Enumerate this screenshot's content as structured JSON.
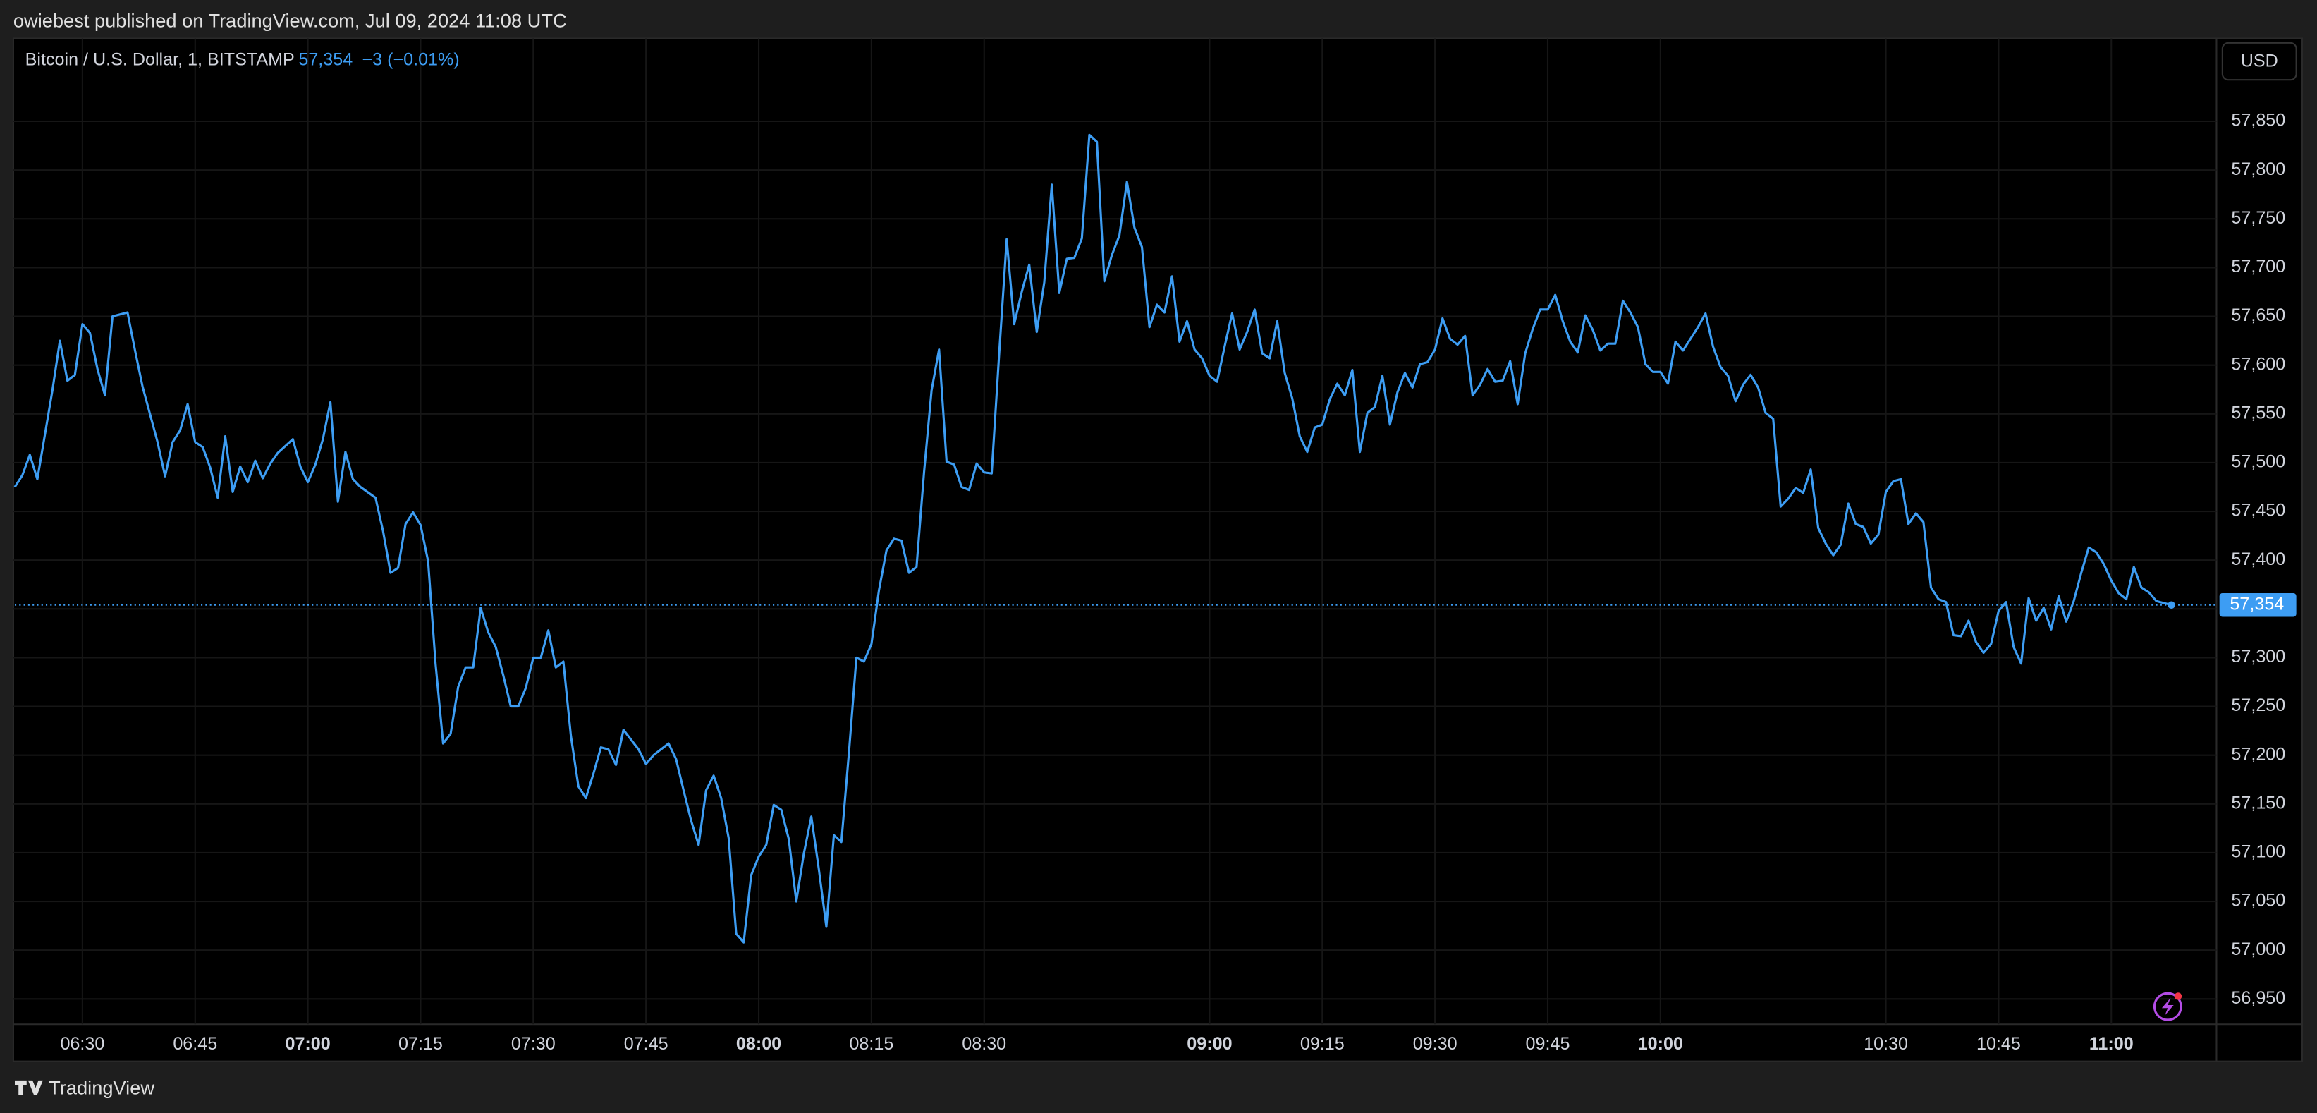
{
  "header": {
    "published": "owiebest published on TradingView.com, Jul 09, 2024 11:08 UTC"
  },
  "footer": {
    "brand": "TradingView"
  },
  "chart_data": {
    "type": "line",
    "last_price_label": "57,354",
    "change_label": "−3 (−0.01%)",
    "currency": "USD",
    "grid": true,
    "xlim": [
      "06:21",
      "11:14"
    ],
    "xticks": [
      "06:30",
      "06:45",
      "07:00",
      "07:15",
      "07:30",
      "07:45",
      "08:00",
      "08:15",
      "08:30",
      "09:00",
      "09:15",
      "09:30",
      "09:45",
      "10:00",
      "10:30",
      "10:45",
      "11:00"
    ],
    "ylim": [
      56924,
      57935
    ],
    "yticks": [
      {
        "value": 56950,
        "label": "56,950"
      },
      {
        "value": 57000,
        "label": "57,000"
      },
      {
        "value": 57050,
        "label": "57,050"
      },
      {
        "value": 57100,
        "label": "57,100"
      },
      {
        "value": 57150,
        "label": "57,150"
      },
      {
        "value": 57200,
        "label": "57,200"
      },
      {
        "value": 57250,
        "label": "57,250"
      },
      {
        "value": 57300,
        "label": "57,300"
      },
      {
        "value": 57350,
        "label": "57,350"
      },
      {
        "value": 57400,
        "label": "57,400"
      },
      {
        "value": 57450,
        "label": "57,450"
      },
      {
        "value": 57500,
        "label": "57,500"
      },
      {
        "value": 57550,
        "label": "57,550"
      },
      {
        "value": 57600,
        "label": "57,600"
      },
      {
        "value": 57650,
        "label": "57,650"
      },
      {
        "value": 57700,
        "label": "57,700"
      },
      {
        "value": 57750,
        "label": "57,750"
      },
      {
        "value": 57800,
        "label": "57,800"
      },
      {
        "value": 57850,
        "label": "57,850"
      }
    ],
    "x": [
      "06:21",
      "06:22",
      "06:23",
      "06:24",
      "06:26",
      "06:27",
      "06:28",
      "06:29",
      "06:30",
      "06:31",
      "06:32",
      "06:33",
      "06:34",
      "06:36",
      "06:37",
      "06:38",
      "06:40",
      "06:41",
      "06:42",
      "06:43",
      "06:44",
      "06:45",
      "06:46",
      "06:47",
      "06:48",
      "06:49",
      "06:50",
      "06:51",
      "06:52",
      "06:53",
      "06:54",
      "06:55",
      "06:56",
      "06:58",
      "06:59",
      "07:00",
      "07:01",
      "07:02",
      "07:03",
      "07:04",
      "07:05",
      "07:06",
      "07:07",
      "07:09",
      "07:10",
      "07:11",
      "07:12",
      "07:13",
      "07:14",
      "07:15",
      "07:16",
      "07:17",
      "07:18",
      "07:19",
      "07:20",
      "07:21",
      "07:22",
      "07:23",
      "07:24",
      "07:25",
      "07:26",
      "07:27",
      "07:28",
      "07:29",
      "07:30",
      "07:31",
      "07:32",
      "07:33",
      "07:34",
      "07:35",
      "07:36",
      "07:37",
      "07:38",
      "07:39",
      "07:40",
      "07:41",
      "07:42",
      "07:44",
      "07:45",
      "07:46",
      "07:47",
      "07:48",
      "07:49",
      "07:50",
      "07:51",
      "07:52",
      "07:53",
      "07:54",
      "07:55",
      "07:56",
      "07:57",
      "07:58",
      "07:59",
      "08:00",
      "08:01",
      "08:02",
      "08:03",
      "08:04",
      "08:05",
      "08:06",
      "08:07",
      "08:08",
      "08:09",
      "08:10",
      "08:11",
      "08:12",
      "08:13",
      "08:14",
      "08:15",
      "08:16",
      "08:17",
      "08:18",
      "08:19",
      "08:20",
      "08:21",
      "08:22",
      "08:23",
      "08:24",
      "08:25",
      "08:26",
      "08:27",
      "08:28",
      "08:29",
      "08:30",
      "08:31",
      "08:32",
      "08:33",
      "08:34",
      "08:35",
      "08:36",
      "08:37",
      "08:38",
      "08:39",
      "08:40",
      "08:41",
      "08:42",
      "08:43",
      "08:44",
      "08:45",
      "08:46",
      "08:47",
      "08:48",
      "08:49",
      "08:50",
      "08:51",
      "08:52",
      "08:53",
      "08:54",
      "08:55",
      "08:56",
      "08:57",
      "08:58",
      "08:59",
      "09:00",
      "09:01",
      "09:02",
      "09:03",
      "09:04",
      "09:05",
      "09:06",
      "09:07",
      "09:08",
      "09:09",
      "09:10",
      "09:11",
      "09:12",
      "09:13",
      "09:14",
      "09:15",
      "09:16",
      "09:17",
      "09:18",
      "09:19",
      "09:20",
      "09:21",
      "09:22",
      "09:23",
      "09:24",
      "09:25",
      "09:26",
      "09:27",
      "09:28",
      "09:29",
      "09:30",
      "09:31",
      "09:32",
      "09:33",
      "09:34",
      "09:35",
      "09:36",
      "09:37",
      "09:38",
      "09:39",
      "09:40",
      "09:41",
      "09:42",
      "09:43",
      "09:44",
      "09:45",
      "09:46",
      "09:47",
      "09:48",
      "09:49",
      "09:50",
      "09:51",
      "09:52",
      "09:53",
      "09:54",
      "09:55",
      "09:56",
      "09:57",
      "09:58",
      "09:59",
      "10:00",
      "10:01",
      "10:02",
      "10:03",
      "10:04",
      "10:05",
      "10:06",
      "10:07",
      "10:08",
      "10:09",
      "10:10",
      "10:11",
      "10:12",
      "10:13",
      "10:14",
      "10:15",
      "10:16",
      "10:17",
      "10:18",
      "10:19",
      "10:20",
      "10:21",
      "10:22",
      "10:23",
      "10:24",
      "10:25",
      "10:26",
      "10:27",
      "10:28",
      "10:29",
      "10:30",
      "10:31",
      "10:32",
      "10:33",
      "10:34",
      "10:35",
      "10:36",
      "10:37",
      "10:38",
      "10:39",
      "10:40",
      "10:41",
      "10:42",
      "10:43",
      "10:44",
      "10:45",
      "10:46",
      "10:47",
      "10:48",
      "10:49",
      "10:50",
      "10:51",
      "10:52",
      "10:53",
      "10:54",
      "10:55",
      "10:56",
      "10:57",
      "10:58",
      "10:59",
      "11:00",
      "11:01",
      "11:02",
      "11:03",
      "11:04",
      "11:05",
      "11:06",
      "11:08"
    ],
    "series": [
      {
        "name": "Bitcoin / U.S. Dollar, 1, BITSTAMP",
        "color": "#3d9df3",
        "values": [
          57475,
          57487,
          57508,
          57483,
          57574,
          57625,
          57584,
          57590,
          57642,
          57633,
          57596,
          57569,
          57650,
          57654,
          57615,
          57578,
          57521,
          57486,
          57521,
          57533,
          57560,
          57521,
          57516,
          57495,
          57464,
          57527,
          57470,
          57496,
          57480,
          57502,
          57484,
          57499,
          57510,
          57524,
          57496,
          57480,
          57498,
          57524,
          57562,
          57460,
          57511,
          57483,
          57475,
          57464,
          57430,
          57387,
          57392,
          57437,
          57449,
          57436,
          57399,
          57293,
          57212,
          57222,
          57270,
          57290,
          57290,
          57351,
          57326,
          57311,
          57282,
          57250,
          57250,
          57269,
          57300,
          57300,
          57328,
          57290,
          57296,
          57220,
          57168,
          57156,
          57181,
          57208,
          57206,
          57190,
          57226,
          57206,
          57191,
          57200,
          57206,
          57212,
          57196,
          57164,
          57133,
          57108,
          57164,
          57179,
          57156,
          57115,
          57017,
          57008,
          57077,
          57096,
          57108,
          57149,
          57144,
          57114,
          57050,
          57099,
          57137,
          57083,
          57024,
          57118,
          57111,
          57202,
          57300,
          57296,
          57314,
          57369,
          57410,
          57422,
          57420,
          57387,
          57393,
          57490,
          57574,
          57616,
          57501,
          57498,
          57475,
          57472,
          57499,
          57490,
          57489,
          57612,
          57729,
          57642,
          57675,
          57703,
          57634,
          57685,
          57785,
          57674,
          57709,
          57710,
          57730,
          57836,
          57829,
          57686,
          57713,
          57733,
          57788,
          57741,
          57721,
          57639,
          57662,
          57654,
          57691,
          57624,
          57645,
          57616,
          57607,
          57589,
          57583,
          57619,
          57653,
          57616,
          57634,
          57657,
          57612,
          57607,
          57645,
          57592,
          57566,
          57527,
          57511,
          57536,
          57539,
          57565,
          57581,
          57569,
          57595,
          57511,
          57551,
          57557,
          57589,
          57539,
          57572,
          57592,
          57577,
          57601,
          57603,
          57616,
          57648,
          57627,
          57621,
          57630,
          57569,
          57580,
          57596,
          57583,
          57584,
          57604,
          57560,
          57612,
          57637,
          57657,
          57657,
          57672,
          57645,
          57624,
          57613,
          57651,
          57636,
          57615,
          57622,
          57622,
          57666,
          57654,
          57639,
          57601,
          57593,
          57593,
          57581,
          57624,
          57615,
          57627,
          57639,
          57653,
          57619,
          57598,
          57589,
          57563,
          57580,
          57590,
          57577,
          57551,
          57545,
          57455,
          57463,
          57474,
          57469,
          57493,
          57433,
          57417,
          57405,
          57416,
          57458,
          57437,
          57434,
          57417,
          57426,
          57470,
          57481,
          57483,
          57437,
          57448,
          57439,
          57372,
          57360,
          57357,
          57323,
          57322,
          57338,
          57316,
          57305,
          57314,
          57348,
          57357,
          57311,
          57294,
          57361,
          57338,
          57351,
          57329,
          57363,
          57337,
          57358,
          57387,
          57413,
          57408,
          57396,
          57379,
          57366,
          57360,
          57393,
          57372,
          57367,
          57358,
          57354
        ]
      }
    ]
  }
}
